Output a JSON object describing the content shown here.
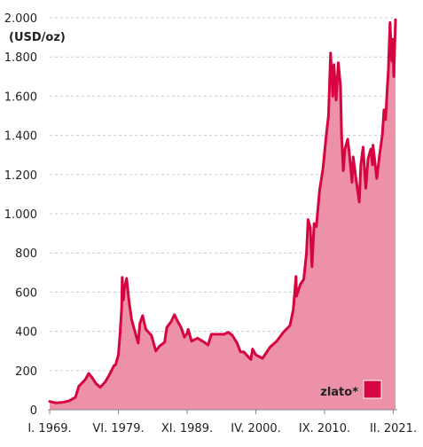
{
  "chart_data": {
    "type": "area",
    "unit_label": "(USD/oz)",
    "ylim": [
      0,
      2000
    ],
    "y_ticks": [
      {
        "value": 0,
        "label": "0"
      },
      {
        "value": 200,
        "label": "200"
      },
      {
        "value": 400,
        "label": "400"
      },
      {
        "value": 600,
        "label": "600"
      },
      {
        "value": 800,
        "label": "800"
      },
      {
        "value": 1000,
        "label": "1.000"
      },
      {
        "value": 1200,
        "label": "1.200"
      },
      {
        "value": 1400,
        "label": "1.400"
      },
      {
        "value": 1600,
        "label": "1.600"
      },
      {
        "value": 1800,
        "label": "1.800"
      },
      {
        "value": 2000,
        "label": "2.000"
      }
    ],
    "x_range": [
      "1969-01",
      "2021-06"
    ],
    "x_ticks": [
      {
        "date": "1969-01",
        "label": "I. 1969."
      },
      {
        "date": "1979-06",
        "label": "VI. 1979."
      },
      {
        "date": "1989-11",
        "label": "XI. 1989."
      },
      {
        "date": "2000-04",
        "label": "IV. 2000."
      },
      {
        "date": "2010-09",
        "label": "IX. 2010."
      },
      {
        "date": "2021-02",
        "label": "II. 2021."
      }
    ],
    "grid": "horizontal-dashed",
    "legend_position": "bottom-right",
    "colors": {
      "line": "#d6053f",
      "fill": "#ec91a8",
      "grid": "#cccccc"
    },
    "series": [
      {
        "name": "zlato*",
        "points": [
          [
            "1969-01",
            42
          ],
          [
            "1970-01",
            35
          ],
          [
            "1971-01",
            38
          ],
          [
            "1972-01",
            46
          ],
          [
            "1972-12",
            64
          ],
          [
            "1973-06",
            120
          ],
          [
            "1974-01",
            140
          ],
          [
            "1974-06",
            155
          ],
          [
            "1974-12",
            185
          ],
          [
            "1975-06",
            165
          ],
          [
            "1976-01",
            135
          ],
          [
            "1976-09",
            115
          ],
          [
            "1977-06",
            142
          ],
          [
            "1978-01",
            175
          ],
          [
            "1978-10",
            225
          ],
          [
            "1979-01",
            230
          ],
          [
            "1979-06",
            280
          ],
          [
            "1979-09",
            390
          ],
          [
            "1979-12",
            520
          ],
          [
            "1980-01",
            675
          ],
          [
            "1980-03",
            560
          ],
          [
            "1980-05",
            620
          ],
          [
            "1980-09",
            670
          ],
          [
            "1981-01",
            560
          ],
          [
            "1981-06",
            460
          ],
          [
            "1982-01",
            390
          ],
          [
            "1982-06",
            340
          ],
          [
            "1982-09",
            440
          ],
          [
            "1983-02",
            480
          ],
          [
            "1983-08",
            410
          ],
          [
            "1984-06",
            380
          ],
          [
            "1985-02",
            300
          ],
          [
            "1985-09",
            325
          ],
          [
            "1986-06",
            345
          ],
          [
            "1986-10",
            420
          ],
          [
            "1987-06",
            450
          ],
          [
            "1987-12",
            485
          ],
          [
            "1988-06",
            450
          ],
          [
            "1988-12",
            420
          ],
          [
            "1989-06",
            370
          ],
          [
            "1989-11",
            390
          ],
          [
            "1990-01",
            410
          ],
          [
            "1990-07",
            350
          ],
          [
            "1991-06",
            365
          ],
          [
            "1992-06",
            345
          ],
          [
            "1993-01",
            330
          ],
          [
            "1993-07",
            385
          ],
          [
            "1994-06",
            385
          ],
          [
            "1995-06",
            385
          ],
          [
            "1996-02",
            395
          ],
          [
            "1996-09",
            380
          ],
          [
            "1997-06",
            340
          ],
          [
            "1997-12",
            295
          ],
          [
            "1998-06",
            295
          ],
          [
            "1999-07",
            256
          ],
          [
            "1999-10",
            310
          ],
          [
            "2000-04",
            280
          ],
          [
            "2001-04",
            262
          ],
          [
            "2002-06",
            320
          ],
          [
            "2003-06",
            350
          ],
          [
            "2004-06",
            395
          ],
          [
            "2005-06",
            430
          ],
          [
            "2005-12",
            510
          ],
          [
            "2006-05",
            680
          ],
          [
            "2006-06",
            580
          ],
          [
            "2007-01",
            640
          ],
          [
            "2007-07",
            665
          ],
          [
            "2007-12",
            800
          ],
          [
            "2008-03",
            970
          ],
          [
            "2008-07",
            930
          ],
          [
            "2008-10",
            730
          ],
          [
            "2009-02",
            950
          ],
          [
            "2009-06",
            935
          ],
          [
            "2009-12",
            1120
          ],
          [
            "2010-06",
            1230
          ],
          [
            "2010-12",
            1400
          ],
          [
            "2011-04",
            1500
          ],
          [
            "2011-08",
            1820
          ],
          [
            "2011-12",
            1600
          ],
          [
            "2012-02",
            1760
          ],
          [
            "2012-06",
            1580
          ],
          [
            "2012-10",
            1770
          ],
          [
            "2013-02",
            1650
          ],
          [
            "2013-04",
            1400
          ],
          [
            "2013-07",
            1220
          ],
          [
            "2013-10",
            1330
          ],
          [
            "2014-03",
            1380
          ],
          [
            "2014-06",
            1310
          ],
          [
            "2014-11",
            1160
          ],
          [
            "2015-01",
            1290
          ],
          [
            "2015-06",
            1180
          ],
          [
            "2015-12",
            1060
          ],
          [
            "2016-03",
            1250
          ],
          [
            "2016-07",
            1340
          ],
          [
            "2016-12",
            1130
          ],
          [
            "2017-04",
            1280
          ],
          [
            "2017-09",
            1330
          ],
          [
            "2017-12",
            1250
          ],
          [
            "2018-01",
            1350
          ],
          [
            "2018-08",
            1180
          ],
          [
            "2019-01",
            1300
          ],
          [
            "2019-06",
            1400
          ],
          [
            "2019-09",
            1530
          ],
          [
            "2019-12",
            1480
          ],
          [
            "2020-03",
            1640
          ],
          [
            "2020-05",
            1730
          ],
          [
            "2020-08",
            1975
          ],
          [
            "2020-11",
            1780
          ],
          [
            "2021-01",
            1890
          ],
          [
            "2021-03",
            1700
          ],
          [
            "2021-06",
            1990
          ]
        ]
      }
    ]
  }
}
